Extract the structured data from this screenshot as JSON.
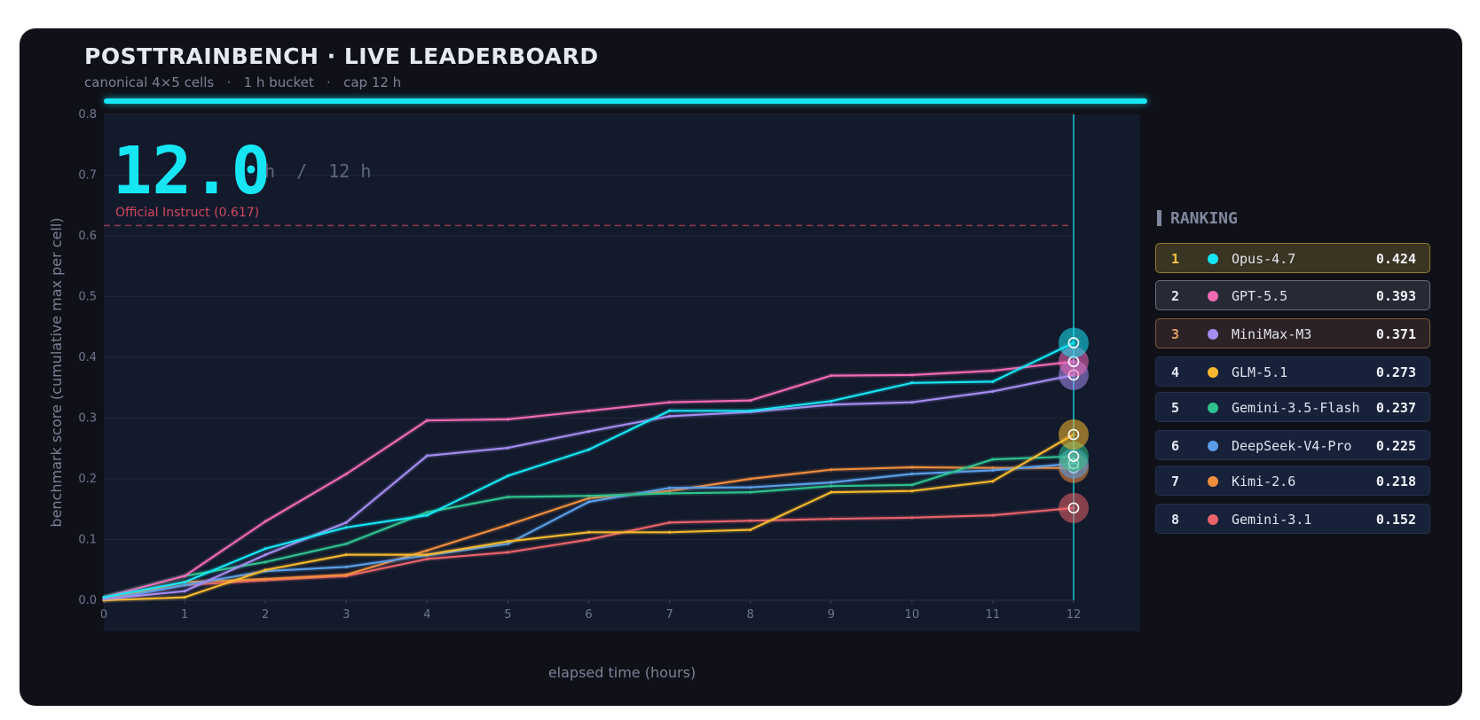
{
  "header": {
    "title": "POSTTRAINBENCH  ·  LIVE LEADERBOARD",
    "subtitle": "canonical 4×5 cells   ·   1 h bucket   ·   cap 12 h"
  },
  "progress": {
    "fraction": 1.0,
    "color": "#16e6f4"
  },
  "clock": {
    "elapsed": "12.0",
    "cap": "h  /  12 h"
  },
  "reference": {
    "label": "Official Instruct (0.617)",
    "value": 0.617,
    "color": "#d3475e"
  },
  "ranking": {
    "title": "RANKING",
    "rows": [
      {
        "rank": "1",
        "name": "Opus-4.7",
        "score": "0.424",
        "color": "#16e6f4"
      },
      {
        "rank": "2",
        "name": "GPT-5.5",
        "score": "0.393",
        "color": "#f06ab4"
      },
      {
        "rank": "3",
        "name": "MiniMax-M3",
        "score": "0.371",
        "color": "#a58cf0"
      },
      {
        "rank": "4",
        "name": "GLM-5.1",
        "score": "0.273",
        "color": "#f5b82e"
      },
      {
        "rank": "5",
        "name": "Gemini-3.5-Flash",
        "score": "0.237",
        "color": "#2fc28e"
      },
      {
        "rank": "6",
        "name": "DeepSeek-V4-Pro",
        "score": "0.225",
        "color": "#5b9ee8"
      },
      {
        "rank": "7",
        "name": "Kimi-2.6",
        "score": "0.218",
        "color": "#f08d3c"
      },
      {
        "rank": "8",
        "name": "Gemini-3.1",
        "score": "0.152",
        "color": "#e8636a"
      }
    ]
  },
  "chart_data": {
    "type": "line",
    "title": "",
    "xlabel": "elapsed time (hours)",
    "ylabel": "benchmark score (cumulative max per cell)",
    "xlim": [
      0,
      12
    ],
    "ylim": [
      0,
      0.8
    ],
    "x_ticks": [
      "0",
      "1",
      "2",
      "3",
      "4",
      "5",
      "6",
      "7",
      "8",
      "9",
      "10",
      "11",
      "12"
    ],
    "y_ticks": [
      "0.0",
      "0.1",
      "0.2",
      "0.3",
      "0.4",
      "0.5",
      "0.6",
      "0.7",
      "0.8"
    ],
    "grid": true,
    "legend": "right (ranking panel)",
    "x": [
      0,
      1,
      2,
      3,
      4,
      5,
      6,
      7,
      8,
      9,
      10,
      11,
      12
    ],
    "series": [
      {
        "name": "Opus-4.7",
        "color": "#16e6f4",
        "values": [
          0.005,
          0.03,
          0.085,
          0.12,
          0.14,
          0.205,
          0.248,
          0.312,
          0.312,
          0.328,
          0.358,
          0.36,
          0.424
        ]
      },
      {
        "name": "GPT-5.5",
        "color": "#f06ab4",
        "values": [
          0.005,
          0.04,
          0.13,
          0.208,
          0.296,
          0.298,
          0.312,
          0.326,
          0.329,
          0.37,
          0.371,
          0.378,
          0.393
        ]
      },
      {
        "name": "MiniMax-M3",
        "color": "#a58cf0",
        "values": [
          0.002,
          0.015,
          0.075,
          0.128,
          0.238,
          0.251,
          0.278,
          0.303,
          0.31,
          0.322,
          0.326,
          0.344,
          0.371
        ]
      },
      {
        "name": "GLM-5.1",
        "color": "#f5b82e",
        "values": [
          0.0,
          0.005,
          0.05,
          0.075,
          0.075,
          0.097,
          0.112,
          0.112,
          0.116,
          0.178,
          0.18,
          0.196,
          0.273
        ]
      },
      {
        "name": "Gemini-3.5-Flash",
        "color": "#2fc28e",
        "values": [
          0.005,
          0.04,
          0.063,
          0.093,
          0.145,
          0.17,
          0.172,
          0.176,
          0.178,
          0.188,
          0.19,
          0.232,
          0.237
        ]
      },
      {
        "name": "DeepSeek-V4-Pro",
        "color": "#5b9ee8",
        "values": [
          0.0,
          0.025,
          0.048,
          0.055,
          0.074,
          0.093,
          0.162,
          0.185,
          0.186,
          0.194,
          0.208,
          0.214,
          0.225
        ]
      },
      {
        "name": "Kimi-2.6",
        "color": "#f08d3c",
        "values": [
          0.002,
          0.03,
          0.035,
          0.042,
          0.082,
          0.124,
          0.168,
          0.18,
          0.2,
          0.215,
          0.219,
          0.218,
          0.218
        ]
      },
      {
        "name": "Gemini-3.1",
        "color": "#e8636a",
        "values": [
          0.003,
          0.025,
          0.033,
          0.04,
          0.068,
          0.079,
          0.1,
          0.128,
          0.131,
          0.134,
          0.136,
          0.14,
          0.152
        ]
      }
    ]
  }
}
